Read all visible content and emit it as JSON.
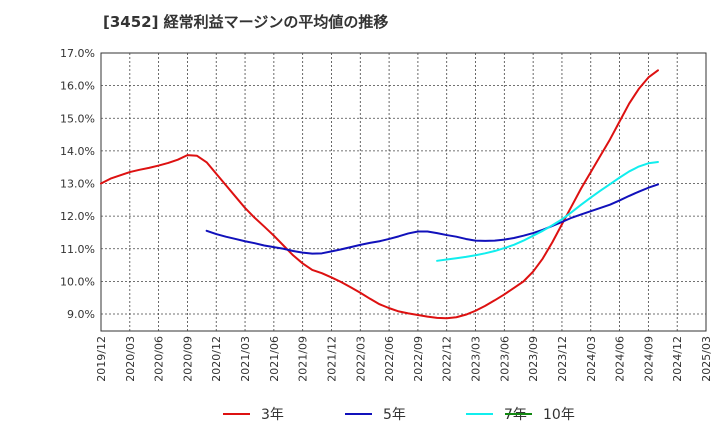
{
  "chart_data": {
    "type": "line",
    "title": "[3452]  経常利益マージンの平均値の推移",
    "y_ticks": [
      "9.0%",
      "10.0%",
      "11.0%",
      "12.0%",
      "13.0%",
      "14.0%",
      "15.0%",
      "16.0%",
      "17.0%"
    ],
    "x_ticks": [
      "2019/12",
      "2020/03",
      "2020/06",
      "2020/09",
      "2020/12",
      "2021/03",
      "2021/06",
      "2021/09",
      "2021/12",
      "2022/03",
      "2022/06",
      "2022/09",
      "2022/12",
      "2023/03",
      "2023/06",
      "2023/09",
      "2023/12",
      "2024/03",
      "2024/06",
      "2024/09",
      "2024/12",
      "2025/03"
    ],
    "ylim": [
      8.5,
      17.0
    ],
    "xlim": [
      "2019-12",
      "2025-03"
    ],
    "grid": true,
    "legend_position": "bottom",
    "series": [
      {
        "name": "3年",
        "color": "#dd1111",
        "points": [
          [
            "2019-12",
            13.0
          ],
          [
            "2020-01",
            13.15
          ],
          [
            "2020-02",
            13.25
          ],
          [
            "2020-03",
            13.35
          ],
          [
            "2020-04",
            13.42
          ],
          [
            "2020-05",
            13.48
          ],
          [
            "2020-06",
            13.55
          ],
          [
            "2020-07",
            13.63
          ],
          [
            "2020-08",
            13.73
          ],
          [
            "2020-09",
            13.87
          ],
          [
            "2020-10",
            13.85
          ],
          [
            "2020-11",
            13.65
          ],
          [
            "2020-12",
            13.3
          ],
          [
            "2021-01",
            12.95
          ],
          [
            "2021-02",
            12.6
          ],
          [
            "2021-03",
            12.25
          ],
          [
            "2021-04",
            11.95
          ],
          [
            "2021-05",
            11.68
          ],
          [
            "2021-06",
            11.4
          ],
          [
            "2021-07",
            11.1
          ],
          [
            "2021-08",
            10.8
          ],
          [
            "2021-09",
            10.55
          ],
          [
            "2021-10",
            10.35
          ],
          [
            "2021-11",
            10.25
          ],
          [
            "2021-12",
            10.12
          ],
          [
            "2022-01",
            9.98
          ],
          [
            "2022-02",
            9.82
          ],
          [
            "2022-03",
            9.65
          ],
          [
            "2022-04",
            9.47
          ],
          [
            "2022-05",
            9.3
          ],
          [
            "2022-06",
            9.18
          ],
          [
            "2022-07",
            9.08
          ],
          [
            "2022-08",
            9.02
          ],
          [
            "2022-09",
            8.97
          ],
          [
            "2022-10",
            8.92
          ],
          [
            "2022-11",
            8.88
          ],
          [
            "2022-12",
            8.87
          ],
          [
            "2023-01",
            8.9
          ],
          [
            "2023-02",
            8.98
          ],
          [
            "2023-03",
            9.1
          ],
          [
            "2023-04",
            9.25
          ],
          [
            "2023-05",
            9.42
          ],
          [
            "2023-06",
            9.6
          ],
          [
            "2023-07",
            9.8
          ],
          [
            "2023-08",
            10.0
          ],
          [
            "2023-09",
            10.3
          ],
          [
            "2023-10",
            10.7
          ],
          [
            "2023-11",
            11.2
          ],
          [
            "2023-12",
            11.75
          ],
          [
            "2024-01",
            12.3
          ],
          [
            "2024-02",
            12.85
          ],
          [
            "2024-03",
            13.35
          ],
          [
            "2024-04",
            13.85
          ],
          [
            "2024-05",
            14.35
          ],
          [
            "2024-06",
            14.9
          ],
          [
            "2024-07",
            15.45
          ],
          [
            "2024-08",
            15.9
          ],
          [
            "2024-09",
            16.25
          ],
          [
            "2024-10",
            16.47
          ]
        ]
      },
      {
        "name": "5年",
        "color": "#1111bb",
        "points": [
          [
            "2020-11",
            11.55
          ],
          [
            "2020-12",
            11.45
          ],
          [
            "2021-01",
            11.37
          ],
          [
            "2021-02",
            11.3
          ],
          [
            "2021-03",
            11.23
          ],
          [
            "2021-04",
            11.17
          ],
          [
            "2021-05",
            11.1
          ],
          [
            "2021-06",
            11.05
          ],
          [
            "2021-07",
            11.0
          ],
          [
            "2021-08",
            10.93
          ],
          [
            "2021-09",
            10.88
          ],
          [
            "2021-10",
            10.85
          ],
          [
            "2021-11",
            10.86
          ],
          [
            "2021-12",
            10.92
          ],
          [
            "2022-01",
            10.98
          ],
          [
            "2022-02",
            11.05
          ],
          [
            "2022-03",
            11.12
          ],
          [
            "2022-04",
            11.18
          ],
          [
            "2022-05",
            11.23
          ],
          [
            "2022-06",
            11.3
          ],
          [
            "2022-07",
            11.38
          ],
          [
            "2022-08",
            11.47
          ],
          [
            "2022-09",
            11.53
          ],
          [
            "2022-10",
            11.53
          ],
          [
            "2022-11",
            11.48
          ],
          [
            "2022-12",
            11.42
          ],
          [
            "2023-01",
            11.37
          ],
          [
            "2023-02",
            11.3
          ],
          [
            "2023-03",
            11.25
          ],
          [
            "2023-04",
            11.24
          ],
          [
            "2023-05",
            11.25
          ],
          [
            "2023-06",
            11.28
          ],
          [
            "2023-07",
            11.33
          ],
          [
            "2023-08",
            11.4
          ],
          [
            "2023-09",
            11.48
          ],
          [
            "2023-10",
            11.58
          ],
          [
            "2023-11",
            11.7
          ],
          [
            "2023-12",
            11.82
          ],
          [
            "2024-01",
            11.95
          ],
          [
            "2024-02",
            12.05
          ],
          [
            "2024-03",
            12.15
          ],
          [
            "2024-04",
            12.25
          ],
          [
            "2024-05",
            12.35
          ],
          [
            "2024-06",
            12.48
          ],
          [
            "2024-07",
            12.62
          ],
          [
            "2024-08",
            12.75
          ],
          [
            "2024-09",
            12.87
          ],
          [
            "2024-10",
            12.97
          ]
        ]
      },
      {
        "name": "7年",
        "color": "#11eeee",
        "points": [
          [
            "2022-11",
            10.63
          ],
          [
            "2022-12",
            10.67
          ],
          [
            "2023-01",
            10.71
          ],
          [
            "2023-02",
            10.75
          ],
          [
            "2023-03",
            10.8
          ],
          [
            "2023-04",
            10.86
          ],
          [
            "2023-05",
            10.93
          ],
          [
            "2023-06",
            11.02
          ],
          [
            "2023-07",
            11.12
          ],
          [
            "2023-08",
            11.25
          ],
          [
            "2023-09",
            11.4
          ],
          [
            "2023-10",
            11.55
          ],
          [
            "2023-11",
            11.72
          ],
          [
            "2023-12",
            11.9
          ],
          [
            "2024-01",
            12.12
          ],
          [
            "2024-02",
            12.35
          ],
          [
            "2024-03",
            12.57
          ],
          [
            "2024-04",
            12.78
          ],
          [
            "2024-05",
            12.98
          ],
          [
            "2024-06",
            13.18
          ],
          [
            "2024-07",
            13.37
          ],
          [
            "2024-08",
            13.52
          ],
          [
            "2024-09",
            13.62
          ],
          [
            "2024-10",
            13.66
          ]
        ]
      },
      {
        "name": "10年",
        "color": "#118811",
        "points": []
      }
    ]
  }
}
